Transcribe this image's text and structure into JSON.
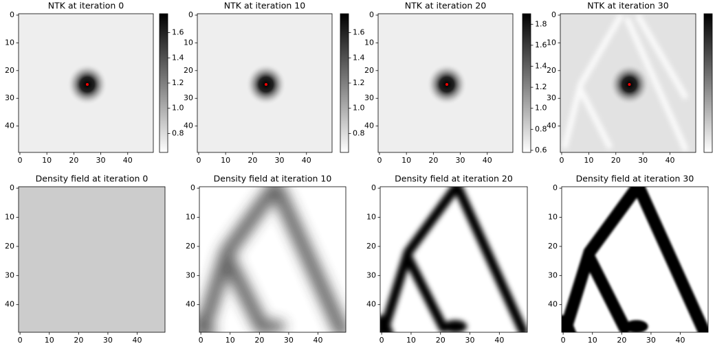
{
  "chart_data": [
    {
      "type": "heatmap",
      "title": "NTK at iteration 0",
      "xlim": [
        -0.5,
        49.5
      ],
      "ylim": [
        -0.5,
        49.5
      ],
      "y_inverted": true,
      "xticks": [
        0,
        10,
        20,
        30,
        40
      ],
      "yticks": [
        0,
        10,
        20,
        30,
        40
      ],
      "marker": {
        "x": 25,
        "y": 25,
        "color": "red"
      },
      "colorbar": {
        "lim": [
          0.65,
          1.75
        ],
        "ticks": [
          0.8,
          {
            "value": 1,
            "label": "1.0"
          },
          1.2,
          1.4,
          1.6
        ]
      }
    },
    {
      "type": "heatmap",
      "title": "NTK at iteration 10",
      "xlim": [
        -0.5,
        49.5
      ],
      "ylim": [
        -0.5,
        49.5
      ],
      "y_inverted": true,
      "xticks": [
        0,
        10,
        20,
        30,
        40
      ],
      "yticks": [
        0,
        10,
        20,
        30,
        40
      ],
      "marker": {
        "x": 25,
        "y": 25,
        "color": "red"
      },
      "colorbar": {
        "lim": [
          0.65,
          1.75
        ],
        "ticks": [
          0.8,
          {
            "value": 1,
            "label": "1.0"
          },
          1.2,
          1.4,
          1.6
        ]
      }
    },
    {
      "type": "heatmap",
      "title": "NTK at iteration 20",
      "xlim": [
        -0.5,
        49.5
      ],
      "ylim": [
        -0.5,
        49.5
      ],
      "y_inverted": true,
      "xticks": [
        0,
        10,
        20,
        30,
        40
      ],
      "yticks": [
        0,
        10,
        20,
        30,
        40
      ],
      "marker": {
        "x": 25,
        "y": 25,
        "color": "red"
      },
      "colorbar": {
        "lim": [
          0.58,
          1.9
        ],
        "ticks": [
          0.6,
          0.8,
          {
            "value": 1,
            "label": "1.0"
          },
          1.2,
          1.4,
          1.6,
          1.8
        ]
      }
    },
    {
      "type": "heatmap",
      "title": "NTK at iteration 30",
      "xlim": [
        -0.5,
        49.5
      ],
      "ylim": [
        -0.5,
        49.5
      ],
      "y_inverted": true,
      "xticks": [
        0,
        10,
        20,
        30,
        40
      ],
      "yticks": [
        0,
        10,
        20,
        30,
        40
      ],
      "marker": {
        "x": 25,
        "y": 25,
        "color": "red"
      },
      "colorbar": {
        "ticks": []
      }
    },
    {
      "type": "heatmap",
      "title": "Density field at iteration 0",
      "xlim": [
        -0.5,
        49.5
      ],
      "ylim": [
        -0.5,
        49.5
      ],
      "y_inverted": true,
      "xticks": [
        0,
        10,
        20,
        30,
        40
      ],
      "yticks": [
        0,
        10,
        20,
        30,
        40
      ]
    },
    {
      "type": "heatmap",
      "title": "Density field at iteration 10",
      "xlim": [
        -0.5,
        49.5
      ],
      "ylim": [
        -0.5,
        49.5
      ],
      "y_inverted": true,
      "xticks": [
        0,
        10,
        20,
        30,
        40
      ],
      "yticks": [
        0,
        10,
        20,
        30,
        40
      ]
    },
    {
      "type": "heatmap",
      "title": "Density field at iteration 20",
      "xlim": [
        -0.5,
        49.5
      ],
      "ylim": [
        -0.5,
        49.5
      ],
      "y_inverted": true,
      "xticks": [
        0,
        10,
        20,
        30,
        40
      ],
      "yticks": [
        0,
        10,
        20,
        30,
        40
      ]
    },
    {
      "type": "heatmap",
      "title": "Density field at iteration 30",
      "xlim": [
        -0.5,
        49.5
      ],
      "ylim": [
        -0.5,
        49.5
      ],
      "y_inverted": true,
      "xticks": [
        0,
        10,
        20,
        30,
        40
      ],
      "yticks": [
        0,
        10,
        20,
        30,
        40
      ]
    }
  ]
}
